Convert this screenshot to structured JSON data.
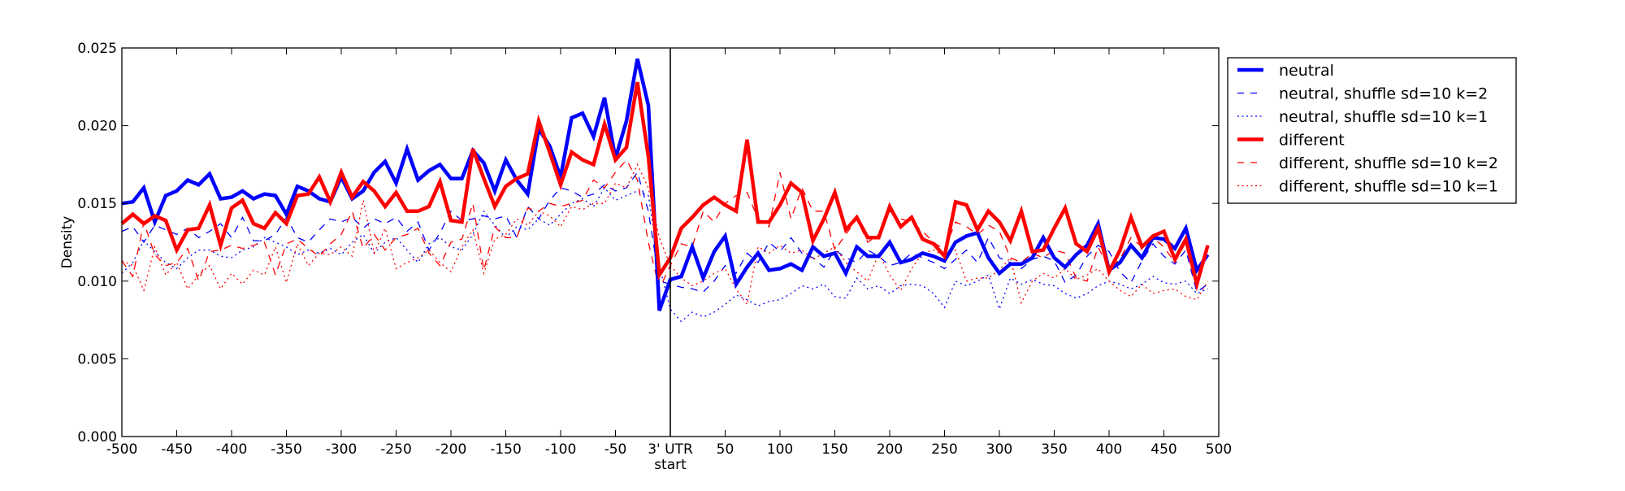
{
  "chart_data": {
    "type": "line",
    "title": "",
    "xlabel": "start",
    "ylabel": "Density",
    "xlim": [
      -500,
      500
    ],
    "ylim": [
      0,
      0.025
    ],
    "x_start": -500,
    "x_step": 10,
    "xticks": [
      -500,
      -450,
      -400,
      -350,
      -300,
      -250,
      -200,
      -150,
      -100,
      -50,
      0,
      50,
      100,
      150,
      200,
      250,
      300,
      350,
      400,
      450,
      500
    ],
    "xtick_labels": [
      "-500",
      "-450",
      "-400",
      "-350",
      "-300",
      "-250",
      "-200",
      "-150",
      "-100",
      "-50",
      "3' UTR",
      "50",
      "100",
      "150",
      "200",
      "250",
      "300",
      "350",
      "400",
      "450",
      "500"
    ],
    "yticks": [
      0,
      0.005,
      0.01,
      0.015,
      0.02,
      0.025
    ],
    "ytick_labels": [
      "0.000",
      "0.005",
      "0.010",
      "0.015",
      "0.020",
      "0.025"
    ],
    "vline_x": 0,
    "grid": false,
    "legend_placement": "outside-right-top",
    "series": [
      {
        "name": "neutral",
        "color": "#0000ff",
        "style": "solid",
        "width": "thick",
        "values": [
          0.015,
          0.0151,
          0.016,
          0.0138,
          0.0155,
          0.0158,
          0.0165,
          0.0162,
          0.0169,
          0.0153,
          0.0154,
          0.0158,
          0.0153,
          0.0156,
          0.0155,
          0.0143,
          0.0161,
          0.0158,
          0.0153,
          0.0151,
          0.0167,
          0.0153,
          0.0158,
          0.017,
          0.0177,
          0.0163,
          0.0185,
          0.0165,
          0.0171,
          0.0175,
          0.0166,
          0.0166,
          0.0184,
          0.0176,
          0.0158,
          0.0178,
          0.0165,
          0.0156,
          0.0198,
          0.0187,
          0.0167,
          0.0205,
          0.0208,
          0.0193,
          0.0218,
          0.0179,
          0.0203,
          0.0243,
          0.0213,
          0.0081,
          0.0101,
          0.0103,
          0.0122,
          0.0102,
          0.0119,
          0.0129,
          0.0098,
          0.0109,
          0.0118,
          0.0107,
          0.0108,
          0.0111,
          0.0107,
          0.0122,
          0.0116,
          0.0118,
          0.0105,
          0.0122,
          0.0116,
          0.0116,
          0.0125,
          0.0112,
          0.0114,
          0.0118,
          0.0116,
          0.0113,
          0.0125,
          0.0129,
          0.0131,
          0.0115,
          0.0105,
          0.0111,
          0.0111,
          0.0115,
          0.0128,
          0.0115,
          0.0109,
          0.0117,
          0.0123,
          0.0137,
          0.0107,
          0.0112,
          0.0123,
          0.0115,
          0.0128,
          0.0127,
          0.0121,
          0.0134,
          0.0107,
          0.0117
        ]
      },
      {
        "name": "neutral, shuffle sd=10 k=2",
        "color": "#0000ff",
        "style": "dashed",
        "width": "thin",
        "values": [
          0.0132,
          0.0135,
          0.0125,
          0.0136,
          0.0133,
          0.013,
          0.0134,
          0.0128,
          0.0132,
          0.0137,
          0.0128,
          0.0141,
          0.0126,
          0.0126,
          0.013,
          0.0141,
          0.0128,
          0.0125,
          0.0133,
          0.014,
          0.0138,
          0.0141,
          0.0134,
          0.014,
          0.0137,
          0.0141,
          0.0132,
          0.0138,
          0.012,
          0.0131,
          0.0145,
          0.0139,
          0.014,
          0.0142,
          0.014,
          0.0142,
          0.0128,
          0.0148,
          0.014,
          0.0152,
          0.016,
          0.0158,
          0.0154,
          0.0156,
          0.0162,
          0.0158,
          0.016,
          0.017,
          0.0145,
          0.01,
          0.0098,
          0.0096,
          0.0095,
          0.0093,
          0.01,
          0.011,
          0.0105,
          0.0118,
          0.0112,
          0.0125,
          0.0119,
          0.0128,
          0.0118,
          0.0115,
          0.0109,
          0.012,
          0.0115,
          0.0112,
          0.012,
          0.0116,
          0.011,
          0.0112,
          0.0118,
          0.0115,
          0.0112,
          0.0108,
          0.0114,
          0.012,
          0.0112,
          0.0128,
          0.0115,
          0.0112,
          0.0108,
          0.0114,
          0.0116,
          0.0113,
          0.0099,
          0.0104,
          0.0116,
          0.0123,
          0.0119,
          0.0106,
          0.0099,
          0.0113,
          0.0124,
          0.0116,
          0.0111,
          0.012,
          0.0093,
          0.0098
        ]
      },
      {
        "name": "neutral, shuffle sd=10 k=1",
        "color": "#0000ff",
        "style": "dotted",
        "width": "thin",
        "values": [
          0.0105,
          0.0112,
          0.0126,
          0.0119,
          0.0112,
          0.0108,
          0.0115,
          0.012,
          0.012,
          0.0116,
          0.0115,
          0.012,
          0.0122,
          0.0128,
          0.0125,
          0.0122,
          0.0117,
          0.012,
          0.0118,
          0.0121,
          0.0117,
          0.0125,
          0.013,
          0.0118,
          0.0125,
          0.0128,
          0.012,
          0.0112,
          0.0124,
          0.0128,
          0.0122,
          0.012,
          0.013,
          0.0145,
          0.0136,
          0.0128,
          0.0135,
          0.0133,
          0.014,
          0.0136,
          0.0143,
          0.015,
          0.0153,
          0.0148,
          0.016,
          0.0152,
          0.0155,
          0.0158,
          0.0155,
          0.011,
          0.0082,
          0.0074,
          0.008,
          0.0077,
          0.008,
          0.0085,
          0.0091,
          0.0088,
          0.0084,
          0.0087,
          0.0088,
          0.0092,
          0.0097,
          0.0095,
          0.0098,
          0.009,
          0.0089,
          0.0102,
          0.0095,
          0.0097,
          0.0092,
          0.0097,
          0.0098,
          0.0097,
          0.0092,
          0.0083,
          0.01,
          0.0097,
          0.01,
          0.0104,
          0.0082,
          0.0102,
          0.0098,
          0.0101,
          0.0098,
          0.0097,
          0.0092,
          0.0089,
          0.0092,
          0.0097,
          0.01,
          0.0098,
          0.0095,
          0.0098,
          0.0103,
          0.0099,
          0.0098,
          0.01,
          0.0092,
          0.0095
        ]
      },
      {
        "name": "different",
        "color": "#ff0000",
        "style": "solid",
        "width": "thick",
        "values": [
          0.0137,
          0.0143,
          0.0137,
          0.0142,
          0.0139,
          0.012,
          0.0133,
          0.0134,
          0.0149,
          0.0123,
          0.0147,
          0.0152,
          0.0137,
          0.0134,
          0.0144,
          0.0137,
          0.0155,
          0.0156,
          0.0167,
          0.0151,
          0.017,
          0.0154,
          0.0164,
          0.0158,
          0.0148,
          0.0157,
          0.0145,
          0.0145,
          0.0148,
          0.0164,
          0.0139,
          0.0138,
          0.0185,
          0.0166,
          0.0148,
          0.0161,
          0.0166,
          0.0169,
          0.0203,
          0.0183,
          0.0162,
          0.0183,
          0.0178,
          0.0175,
          0.0201,
          0.0178,
          0.0186,
          0.0228,
          0.018,
          0.0104,
          0.0115,
          0.0134,
          0.0141,
          0.0149,
          0.0154,
          0.0149,
          0.0145,
          0.0191,
          0.0138,
          0.0138,
          0.0149,
          0.0163,
          0.0157,
          0.0126,
          0.014,
          0.0157,
          0.0133,
          0.0141,
          0.0128,
          0.0128,
          0.0148,
          0.0135,
          0.0141,
          0.0127,
          0.0124,
          0.0116,
          0.0151,
          0.0149,
          0.0133,
          0.0145,
          0.0138,
          0.0126,
          0.0145,
          0.0119,
          0.012,
          0.0134,
          0.0147,
          0.0124,
          0.0119,
          0.0134,
          0.0106,
          0.012,
          0.0141,
          0.0122,
          0.0129,
          0.0132,
          0.0114,
          0.0127,
          0.0098,
          0.0123
        ]
      },
      {
        "name": "different, shuffle sd=10 k=2",
        "color": "#ff0000",
        "style": "dashed",
        "width": "thin",
        "values": [
          0.0113,
          0.0103,
          0.0138,
          0.0117,
          0.011,
          0.0112,
          0.0121,
          0.01,
          0.0119,
          0.012,
          0.0123,
          0.0121,
          0.0123,
          0.0125,
          0.0104,
          0.0124,
          0.0127,
          0.0121,
          0.0116,
          0.0124,
          0.013,
          0.0145,
          0.0121,
          0.013,
          0.012,
          0.0128,
          0.013,
          0.0134,
          0.0118,
          0.011,
          0.0125,
          0.0127,
          0.015,
          0.0107,
          0.0135,
          0.0128,
          0.0128,
          0.0147,
          0.0145,
          0.015,
          0.0148,
          0.015,
          0.0152,
          0.0165,
          0.016,
          0.017,
          0.0178,
          0.0165,
          0.0125,
          0.0095,
          0.011,
          0.0124,
          0.0122,
          0.0145,
          0.0138,
          0.015,
          0.0155,
          0.0157,
          0.014,
          0.0135,
          0.017,
          0.014,
          0.016,
          0.0145,
          0.0145,
          0.012,
          0.013,
          0.014,
          0.0125,
          0.013,
          0.0145,
          0.014,
          0.0138,
          0.0132,
          0.0125,
          0.012,
          0.0138,
          0.0135,
          0.013,
          0.0136,
          0.0132,
          0.0115,
          0.0112,
          0.0118,
          0.0115,
          0.012,
          0.0118,
          0.0102,
          0.01,
          0.0122,
          0.0108,
          0.0114,
          0.0128,
          0.0122,
          0.0128,
          0.0122,
          0.0112,
          0.0125,
          0.0095,
          0.012
        ]
      },
      {
        "name": "different, shuffle sd=10 k=1",
        "color": "#ff0000",
        "style": "dotted",
        "width": "thin",
        "values": [
          0.0113,
          0.011,
          0.0094,
          0.0122,
          0.0104,
          0.0112,
          0.0095,
          0.0104,
          0.011,
          0.0095,
          0.0105,
          0.0098,
          0.0107,
          0.0104,
          0.0122,
          0.0099,
          0.0124,
          0.011,
          0.0118,
          0.0117,
          0.0122,
          0.0116,
          0.0152,
          0.0118,
          0.0134,
          0.0108,
          0.0112,
          0.0115,
          0.012,
          0.0112,
          0.0106,
          0.0122,
          0.0133,
          0.0105,
          0.0127,
          0.013,
          0.014,
          0.0136,
          0.0145,
          0.0142,
          0.0135,
          0.0148,
          0.0146,
          0.015,
          0.015,
          0.0163,
          0.016,
          0.0175,
          0.016,
          0.0128,
          0.011,
          0.0102,
          0.0097,
          0.01,
          0.0105,
          0.0108,
          0.0095,
          0.0085,
          0.0122,
          0.0118,
          0.0123,
          0.0118,
          0.012,
          0.0114,
          0.0118,
          0.0122,
          0.0112,
          0.0106,
          0.01,
          0.0118,
          0.0104,
          0.0094,
          0.0108,
          0.0118,
          0.012,
          0.0116,
          0.012,
          0.01,
          0.0102,
          0.0102,
          0.0107,
          0.0115,
          0.0086,
          0.01,
          0.0105,
          0.0102,
          0.0108,
          0.0101,
          0.0104,
          0.0108,
          0.01,
          0.0094,
          0.009,
          0.0098,
          0.0092,
          0.0094,
          0.0095,
          0.009,
          0.0088,
          0.01
        ]
      }
    ]
  }
}
